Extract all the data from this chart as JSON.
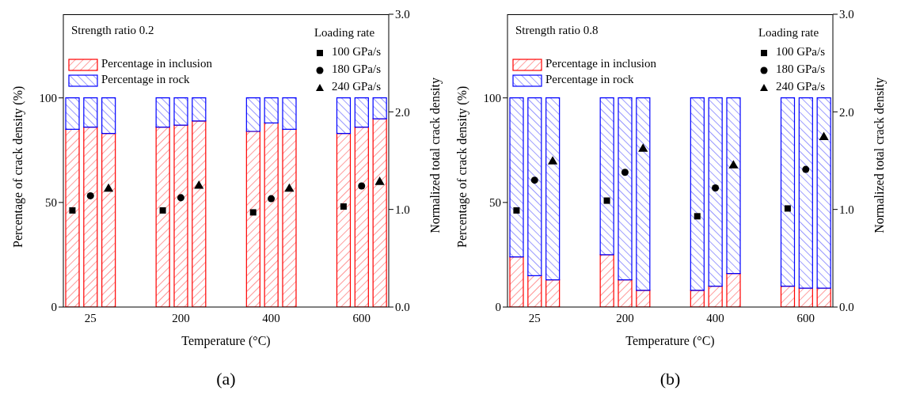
{
  "chart_data": [
    {
      "type": "bar",
      "title": "Strength ratio 0.2",
      "xlabel": "Temperature (°C)",
      "ylabel": "Percentage of crack density (%)",
      "y2label": "Normalized total crack density",
      "legend_title": "Loading rate",
      "legend": "top",
      "stacked": true,
      "categories": [
        null,
        "25",
        null,
        null,
        null,
        null,
        "200",
        null,
        null,
        null,
        null,
        "400",
        null,
        null,
        null,
        null,
        "600",
        null
      ],
      "ylim": [
        0,
        140
      ],
      "yticks": [
        0,
        50,
        100
      ],
      "y2lim": [
        0,
        3
      ],
      "y2ticks": [
        {
          "value": 0,
          "label": "0.0"
        },
        {
          "value": 1,
          "label": "1.0"
        },
        {
          "value": 2,
          "label": "2.0"
        },
        {
          "value": 3,
          "label": "3.0"
        }
      ],
      "series": [
        {
          "name": "Percentage in inclusion",
          "color": "#ff0000",
          "values": [
            85,
            86,
            83,
            null,
            null,
            86,
            87,
            89,
            null,
            null,
            84,
            88,
            85,
            null,
            null,
            83,
            86,
            90
          ]
        },
        {
          "name": "Percentage in rock",
          "color": "#0000ff",
          "values": [
            15,
            14,
            17,
            null,
            null,
            14,
            13,
            11,
            null,
            null,
            16,
            12,
            15,
            null,
            null,
            17,
            14,
            10
          ]
        },
        {
          "type": "scatter",
          "name": "100 GPa/s",
          "color": "#000000",
          "marker": "square",
          "axis": "y2",
          "values": [
            0.99,
            null,
            null,
            null,
            null,
            0.99,
            null,
            null,
            null,
            null,
            0.97,
            null,
            null,
            null,
            null,
            1.03,
            null,
            null
          ]
        },
        {
          "type": "scatter",
          "name": "180 GPa/s",
          "color": "#000000",
          "marker": "circle",
          "axis": "y2",
          "values": [
            null,
            1.14,
            null,
            null,
            null,
            null,
            1.12,
            null,
            null,
            null,
            null,
            1.11,
            null,
            null,
            null,
            null,
            1.24,
            null
          ]
        },
        {
          "type": "scatter",
          "name": "240 GPa/s",
          "color": "#000000",
          "marker": "triangle",
          "axis": "y2",
          "values": [
            null,
            null,
            1.21,
            null,
            null,
            null,
            null,
            1.24,
            null,
            null,
            null,
            null,
            1.21,
            null,
            null,
            null,
            null,
            1.28
          ]
        }
      ],
      "annotations": [
        "(a)"
      ]
    },
    {
      "type": "bar",
      "title": "Strength ratio 0.8",
      "xlabel": "Temperature (°C)",
      "ylabel": "Percentage of crack density (%)",
      "y2label": "Normalized total crack density",
      "legend_title": "Loading rate",
      "legend": "top",
      "stacked": true,
      "categories": [
        null,
        "25",
        null,
        null,
        null,
        null,
        "200",
        null,
        null,
        null,
        null,
        "400",
        null,
        null,
        null,
        null,
        "600",
        null
      ],
      "ylim": [
        0,
        140
      ],
      "yticks": [
        0,
        50,
        100
      ],
      "y2lim": [
        0,
        3
      ],
      "y2ticks": [
        {
          "value": 0,
          "label": "0.0"
        },
        {
          "value": 1,
          "label": "1.0"
        },
        {
          "value": 2,
          "label": "2.0"
        },
        {
          "value": 3,
          "label": "3.0"
        }
      ],
      "series": [
        {
          "name": "Percentage in inclusion",
          "color": "#ff0000",
          "values": [
            24,
            15,
            13,
            null,
            null,
            25,
            13,
            8,
            null,
            null,
            8,
            10,
            16,
            null,
            null,
            10,
            9,
            9
          ]
        },
        {
          "name": "Percentage in rock",
          "color": "#0000ff",
          "values": [
            76,
            85,
            87,
            null,
            null,
            75,
            87,
            92,
            null,
            null,
            92,
            90,
            84,
            null,
            null,
            90,
            91,
            91
          ]
        },
        {
          "type": "scatter",
          "name": "100 GPa/s",
          "color": "#000000",
          "marker": "square",
          "axis": "y2",
          "values": [
            0.99,
            null,
            null,
            null,
            null,
            1.09,
            null,
            null,
            null,
            null,
            0.93,
            null,
            null,
            null,
            null,
            1.01,
            null,
            null
          ]
        },
        {
          "type": "scatter",
          "name": "180 GPa/s",
          "color": "#000000",
          "marker": "circle",
          "axis": "y2",
          "values": [
            null,
            1.3,
            null,
            null,
            null,
            null,
            1.38,
            null,
            null,
            null,
            null,
            1.22,
            null,
            null,
            null,
            null,
            1.41,
            null
          ]
        },
        {
          "type": "scatter",
          "name": "240 GPa/s",
          "color": "#000000",
          "marker": "triangle",
          "axis": "y2",
          "values": [
            null,
            null,
            1.49,
            null,
            null,
            null,
            null,
            1.62,
            null,
            null,
            null,
            null,
            1.45,
            null,
            null,
            null,
            null,
            1.74
          ]
        }
      ],
      "annotations": [
        "(b)"
      ]
    }
  ]
}
